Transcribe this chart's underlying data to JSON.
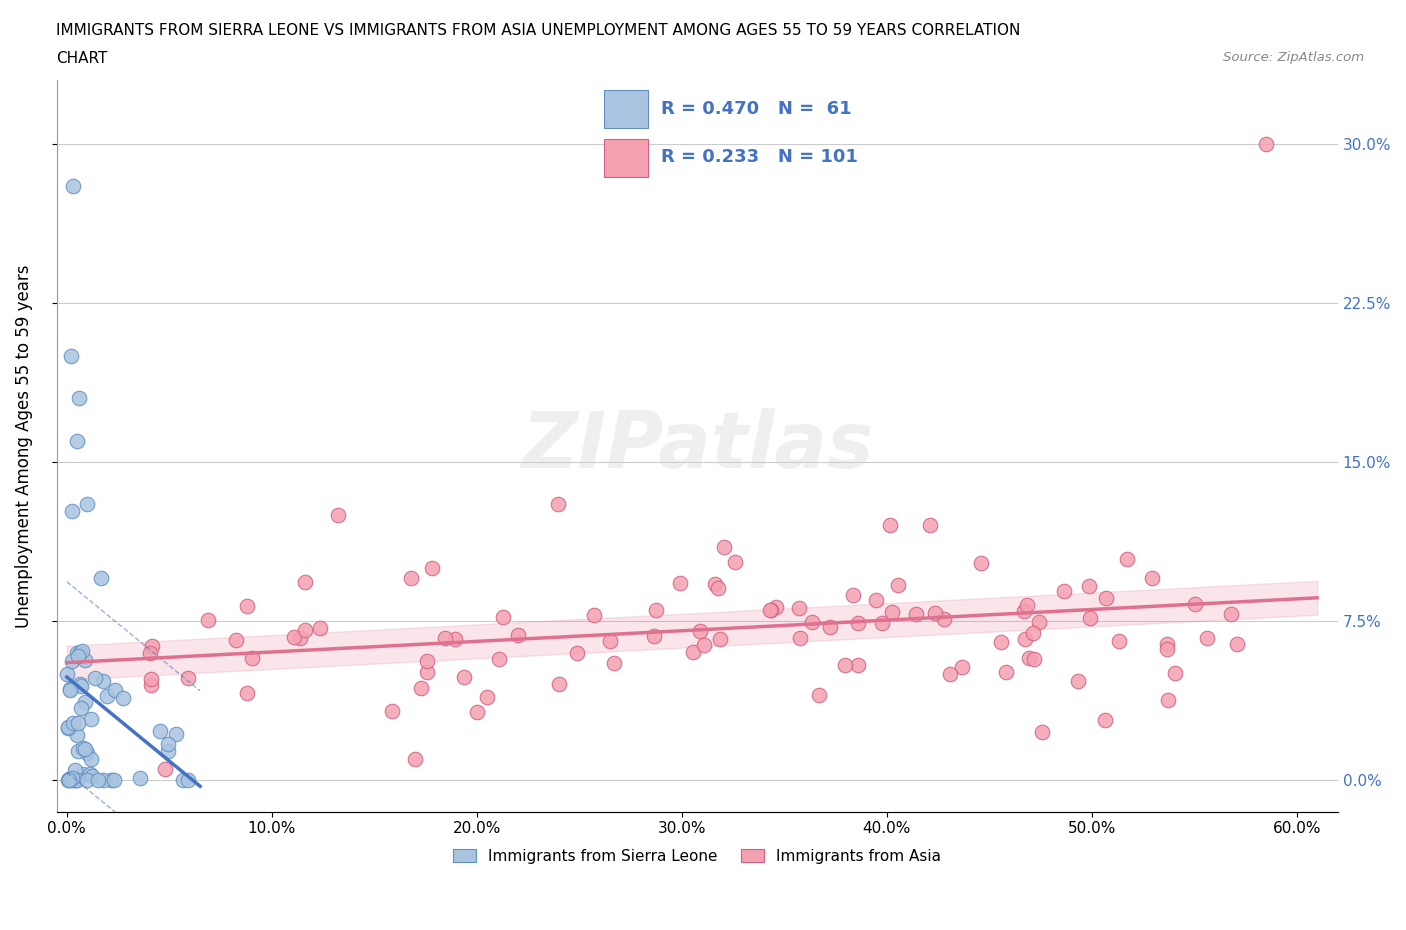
{
  "title_line1": "IMMIGRANTS FROM SIERRA LEONE VS IMMIGRANTS FROM ASIA UNEMPLOYMENT AMONG AGES 55 TO 59 YEARS CORRELATION",
  "title_line2": "CHART",
  "source": "Source: ZipAtlas.com",
  "ylabel": "Unemployment Among Ages 55 to 59 years",
  "legend_label_1": "Immigrants from Sierra Leone",
  "legend_label_2": "Immigrants from Asia",
  "R1": 0.47,
  "N1": 61,
  "R2": 0.233,
  "N2": 101,
  "color_sierra": "#a8c4e0",
  "color_asia": "#f4a0b0",
  "color_trend_sierra": "#4472c4",
  "color_trend_asia": "#e07090",
  "xmin": -0.005,
  "xmax": 0.62,
  "ymin": -0.015,
  "ymax": 0.33,
  "yticks": [
    0.0,
    0.075,
    0.15,
    0.225,
    0.3
  ],
  "xticks": [
    0.0,
    0.1,
    0.2,
    0.3,
    0.4,
    0.5,
    0.6
  ]
}
